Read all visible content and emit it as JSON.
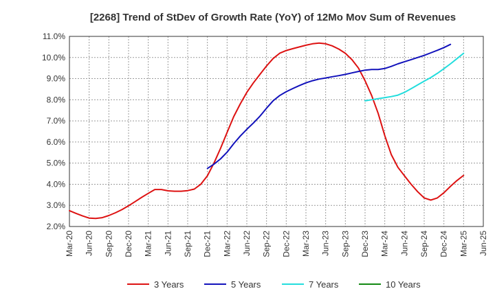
{
  "chart_data": {
    "type": "line",
    "title": "[2268]  Trend of StDev of Growth Rate (YoY) of 12Mo Mov Sum of Revenues",
    "xlabel": "",
    "ylabel": "",
    "x_ticks": [
      "Mar-20",
      "Jun-20",
      "Sep-20",
      "Dec-20",
      "Mar-21",
      "Jun-21",
      "Sep-21",
      "Dec-21",
      "Mar-22",
      "Jun-22",
      "Sep-22",
      "Dec-22",
      "Mar-23",
      "Jun-23",
      "Sep-23",
      "Dec-23",
      "Mar-24",
      "Jun-24",
      "Sep-24",
      "Dec-24",
      "Mar-25",
      "Jun-25"
    ],
    "y_ticks": [
      "2.0%",
      "3.0%",
      "4.0%",
      "5.0%",
      "6.0%",
      "7.0%",
      "8.0%",
      "9.0%",
      "10.0%",
      "11.0%"
    ],
    "ylim": [
      2.0,
      11.0
    ],
    "grid": true,
    "legend_position": "bottom",
    "series": [
      {
        "name": "3 Years",
        "color": "#dd1111",
        "start_index": 0,
        "values": [
          2.75,
          2.62,
          2.5,
          2.4,
          2.38,
          2.42,
          2.52,
          2.65,
          2.8,
          2.98,
          3.18,
          3.38,
          3.57,
          3.75,
          3.75,
          3.69,
          3.67,
          3.67,
          3.7,
          3.77,
          4.0,
          4.4,
          5.0,
          5.7,
          6.45,
          7.2,
          7.8,
          8.35,
          8.8,
          9.2,
          9.6,
          9.95,
          10.2,
          10.33,
          10.42,
          10.5,
          10.58,
          10.65,
          10.68,
          10.65,
          10.55,
          10.4,
          10.2,
          9.9,
          9.5,
          8.9,
          8.2,
          7.35,
          6.3,
          5.4,
          4.8,
          4.4,
          4.0,
          3.65,
          3.35,
          3.25,
          3.35,
          3.6,
          3.9,
          4.18,
          4.42
        ]
      },
      {
        "name": "5 Years",
        "color": "#1111bb",
        "start_index": 21,
        "values": [
          4.75,
          4.95,
          5.2,
          5.52,
          5.92,
          6.28,
          6.6,
          6.9,
          7.22,
          7.6,
          7.95,
          8.2,
          8.38,
          8.53,
          8.67,
          8.8,
          8.9,
          8.98,
          9.03,
          9.09,
          9.14,
          9.2,
          9.27,
          9.34,
          9.4,
          9.43,
          9.43,
          9.48,
          9.58,
          9.7,
          9.8,
          9.9,
          10.0,
          10.1,
          10.22,
          10.34,
          10.47,
          10.62
        ]
      },
      {
        "name": "7 Years",
        "color": "#22dddd",
        "start_index": 45,
        "values": [
          7.95,
          8.0,
          8.05,
          8.1,
          8.15,
          8.22,
          8.35,
          8.52,
          8.7,
          8.88,
          9.05,
          9.25,
          9.47,
          9.7,
          9.95,
          10.2
        ]
      },
      {
        "name": "10 Years",
        "color": "#118811",
        "start_index": 0,
        "values": []
      }
    ]
  }
}
